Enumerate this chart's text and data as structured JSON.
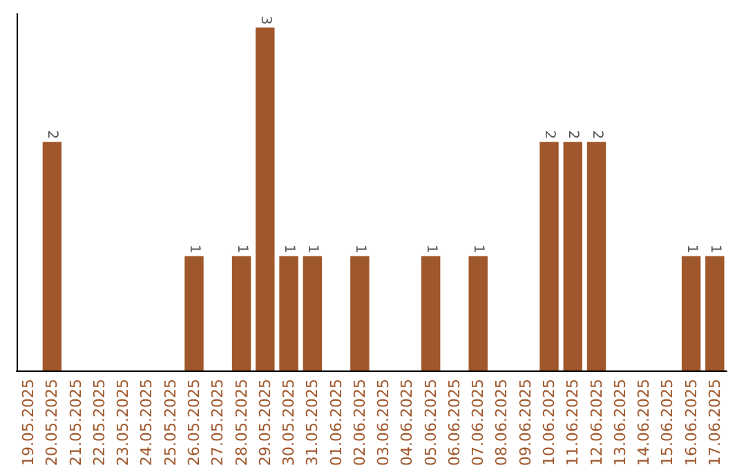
{
  "chart_data": {
    "type": "bar",
    "categories": [
      "19.05.2025",
      "20.05.2025",
      "21.05.2025",
      "22.05.2025",
      "23.05.2025",
      "24.05.2025",
      "25.05.2025",
      "26.05.2025",
      "27.05.2025",
      "28.05.2025",
      "29.05.2025",
      "30.05.2025",
      "31.05.2025",
      "01.06.2025",
      "02.06.2025",
      "03.06.2025",
      "04.06.2025",
      "05.06.2025",
      "06.06.2025",
      "07.06.2025",
      "08.06.2025",
      "09.06.2025",
      "10.06.2025",
      "11.06.2025",
      "12.06.2025",
      "13.06.2025",
      "14.06.2025",
      "15.06.2025",
      "16.06.2025",
      "17.06.2025"
    ],
    "values": [
      0,
      2,
      0,
      0,
      0,
      0,
      0,
      1,
      0,
      1,
      3,
      1,
      1,
      0,
      1,
      0,
      0,
      1,
      0,
      1,
      0,
      0,
      2,
      2,
      2,
      0,
      0,
      0,
      1,
      1
    ],
    "value_labels": [
      null,
      "2",
      null,
      null,
      null,
      null,
      null,
      "1",
      null,
      "1",
      "3",
      "1",
      "1",
      null,
      "1",
      null,
      null,
      "1",
      null,
      "1",
      null,
      null,
      "2",
      "2",
      "2",
      null,
      null,
      null,
      "1",
      "1"
    ],
    "color": "#a0572b",
    "grid": false
  }
}
